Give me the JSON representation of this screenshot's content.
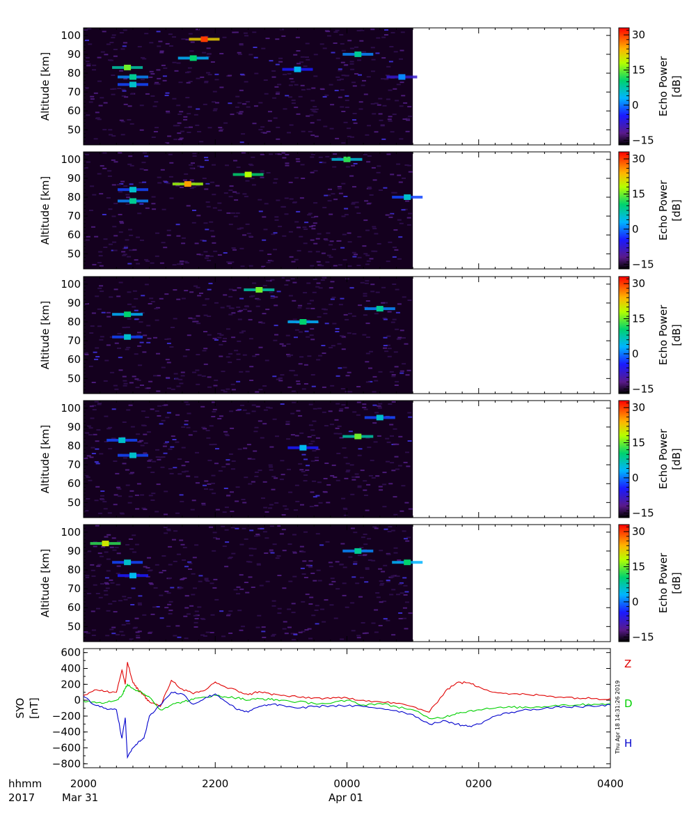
{
  "figure": {
    "panel_ylabel": "Altitude [km]",
    "colorbar_label_line1": "Echo Power",
    "colorbar_label_line2": "[dB]",
    "colorbar_ticks": [
      "30",
      "15",
      "0",
      "−15"
    ],
    "mag_ylabel_line1": "SYO",
    "mag_ylabel_line2": "[nT]",
    "x_row_label_1": "hhmm",
    "x_row_label_2": "2017",
    "date_labels": [
      "Mar 31",
      "Apr 01"
    ],
    "timestamp": "Thu Apr 18 14:31:26 2019",
    "colors": {
      "Z": "#e00000",
      "D": "#00d000",
      "H": "#0000cc"
    }
  },
  "chart_data": [
    {
      "type": "heatmap",
      "panel": 1,
      "ylabel": "Altitude [km]",
      "ylim": [
        42,
        104
      ],
      "yticks": [
        "50",
        "60",
        "70",
        "80",
        "90",
        "100"
      ],
      "xticks": [
        "2000",
        "2200",
        "0000",
        "0200",
        "0400"
      ],
      "data_until": "0100",
      "colorbar": {
        "label": "Echo Power [dB]",
        "range": [
          -17,
          33
        ],
        "ticks": [
          "30",
          "15",
          "0",
          "−15"
        ]
      },
      "echoes": [
        {
          "time": "2040",
          "alt": 83,
          "power": 15
        },
        {
          "time": "2045",
          "alt": 78,
          "power": 8
        },
        {
          "time": "2045",
          "alt": 74,
          "power": 5
        },
        {
          "time": "2150",
          "alt": 98,
          "power": 30
        },
        {
          "time": "2140",
          "alt": 88,
          "power": 10
        },
        {
          "time": "2315",
          "alt": 82,
          "power": 3
        },
        {
          "time": "0010",
          "alt": 90,
          "power": 8
        },
        {
          "time": "0050",
          "alt": 78,
          "power": 0
        }
      ]
    },
    {
      "type": "heatmap",
      "panel": 2,
      "ylabel": "Altitude [km]",
      "ylim": [
        42,
        104
      ],
      "yticks": [
        "50",
        "60",
        "70",
        "80",
        "90",
        "100"
      ],
      "xticks": [
        "2000",
        "2200",
        "0000",
        "0200",
        "0400"
      ],
      "data_until": "0100",
      "colorbar": {
        "label": "Echo Power [dB]",
        "range": [
          -17,
          33
        ],
        "ticks": [
          "30",
          "15",
          "0",
          "−15"
        ]
      },
      "echoes": [
        {
          "time": "2045",
          "alt": 84,
          "power": 5
        },
        {
          "time": "2045",
          "alt": 78,
          "power": 8
        },
        {
          "time": "2135",
          "alt": 87,
          "power": 25
        },
        {
          "time": "2230",
          "alt": 92,
          "power": 18
        },
        {
          "time": "0000",
          "alt": 100,
          "power": 12
        },
        {
          "time": "0055",
          "alt": 80,
          "power": 5
        }
      ]
    },
    {
      "type": "heatmap",
      "panel": 3,
      "ylabel": "Altitude [km]",
      "ylim": [
        42,
        104
      ],
      "yticks": [
        "50",
        "60",
        "70",
        "80",
        "90",
        "100"
      ],
      "xticks": [
        "2000",
        "2200",
        "0000",
        "0200",
        "0400"
      ],
      "data_until": "0100",
      "colorbar": {
        "label": "Echo Power [dB]",
        "range": [
          -17,
          33
        ],
        "ticks": [
          "30",
          "15",
          "0",
          "−15"
        ]
      },
      "echoes": [
        {
          "time": "2040",
          "alt": 84,
          "power": 10
        },
        {
          "time": "2040",
          "alt": 72,
          "power": 5
        },
        {
          "time": "2240",
          "alt": 97,
          "power": 15
        },
        {
          "time": "2320",
          "alt": 80,
          "power": 10
        },
        {
          "time": "0030",
          "alt": 87,
          "power": 8
        }
      ]
    },
    {
      "type": "heatmap",
      "panel": 4,
      "ylabel": "Altitude [km]",
      "ylim": [
        42,
        104
      ],
      "yticks": [
        "50",
        "60",
        "70",
        "80",
        "90",
        "100"
      ],
      "xticks": [
        "2000",
        "2200",
        "0000",
        "0200",
        "0400"
      ],
      "data_until": "0100",
      "colorbar": {
        "label": "Echo Power [dB]",
        "range": [
          -17,
          33
        ],
        "ticks": [
          "30",
          "15",
          "0",
          "−15"
        ]
      },
      "echoes": [
        {
          "time": "2035",
          "alt": 83,
          "power": 5
        },
        {
          "time": "2045",
          "alt": 75,
          "power": 5
        },
        {
          "time": "2320",
          "alt": 79,
          "power": 3
        },
        {
          "time": "0010",
          "alt": 85,
          "power": 15
        },
        {
          "time": "0030",
          "alt": 95,
          "power": 5
        }
      ]
    },
    {
      "type": "heatmap",
      "panel": 5,
      "ylabel": "Altitude [km]",
      "ylim": [
        42,
        104
      ],
      "yticks": [
        "50",
        "60",
        "70",
        "80",
        "90",
        "100"
      ],
      "xticks": [
        "2000",
        "2200",
        "0000",
        "0200",
        "0400"
      ],
      "data_until": "0100",
      "colorbar": {
        "label": "Echo Power [dB]",
        "range": [
          -17,
          33
        ],
        "ticks": [
          "30",
          "15",
          "0",
          "−15"
        ]
      },
      "echoes": [
        {
          "time": "2040",
          "alt": 84,
          "power": 5
        },
        {
          "time": "2045",
          "alt": 77,
          "power": 3
        },
        {
          "time": "2020",
          "alt": 94,
          "power": 20
        },
        {
          "time": "0010",
          "alt": 90,
          "power": 8
        },
        {
          "time": "0055",
          "alt": 84,
          "power": 10
        }
      ]
    },
    {
      "type": "line",
      "panel": 6,
      "ylabel": "SYO [nT]",
      "ylim": [
        -850,
        650
      ],
      "yticks": [
        "600",
        "400",
        "200",
        "0",
        "−200",
        "−400",
        "−600",
        "−800"
      ],
      "xticks": [
        "2000",
        "2200",
        "0000",
        "0200",
        "0400"
      ],
      "x_dates": [
        "Mar 31",
        "Apr 01"
      ],
      "series": [
        {
          "name": "Z",
          "color": "#e00000",
          "x": [
            "2000",
            "2010",
            "2020",
            "2030",
            "2035",
            "2038",
            "2040",
            "2045",
            "2050",
            "2055",
            "2100",
            "2110",
            "2120",
            "2130",
            "2140",
            "2150",
            "2200",
            "2210",
            "2220",
            "2230",
            "2240",
            "2250",
            "2300",
            "2315",
            "2330",
            "2345",
            "0000",
            "0015",
            "0030",
            "0045",
            "0100",
            "0115",
            "0130",
            "0140",
            "0150",
            "0200",
            "0215",
            "0230",
            "0245",
            "0300",
            "0315",
            "0330",
            "0345",
            "0400"
          ],
          "y": [
            60,
            130,
            110,
            100,
            380,
            200,
            480,
            220,
            130,
            60,
            -20,
            -80,
            250,
            140,
            80,
            120,
            230,
            160,
            120,
            70,
            110,
            80,
            60,
            40,
            30,
            20,
            30,
            0,
            -20,
            -40,
            -80,
            -150,
            120,
            220,
            220,
            170,
            100,
            80,
            70,
            60,
            40,
            30,
            20,
            20
          ]
        },
        {
          "name": "D",
          "color": "#00d000",
          "x": [
            "2000",
            "2010",
            "2020",
            "2030",
            "2035",
            "2038",
            "2040",
            "2045",
            "2050",
            "2055",
            "2100",
            "2110",
            "2120",
            "2130",
            "2140",
            "2150",
            "2200",
            "2210",
            "2220",
            "2230",
            "2240",
            "2250",
            "2300",
            "2315",
            "2330",
            "2345",
            "0000",
            "0015",
            "0030",
            "0045",
            "0100",
            "0115",
            "0130",
            "0140",
            "0150",
            "0200",
            "0215",
            "0230",
            "0245",
            "0300",
            "0315",
            "0330",
            "0345",
            "0400"
          ],
          "y": [
            -10,
            -20,
            -30,
            0,
            60,
            150,
            200,
            150,
            110,
            80,
            40,
            -120,
            -60,
            -20,
            10,
            40,
            60,
            40,
            30,
            0,
            20,
            10,
            0,
            -20,
            -40,
            -40,
            0,
            -60,
            -40,
            -80,
            -120,
            -230,
            -210,
            -160,
            -140,
            -120,
            -100,
            -90,
            -90,
            -80,
            -60,
            -60,
            -50,
            -40
          ]
        },
        {
          "name": "H",
          "color": "#0000cc",
          "x": [
            "2000",
            "2010",
            "2020",
            "2030",
            "2035",
            "2038",
            "2040",
            "2045",
            "2050",
            "2055",
            "2100",
            "2110",
            "2120",
            "2130",
            "2140",
            "2150",
            "2200",
            "2210",
            "2220",
            "2230",
            "2240",
            "2250",
            "2300",
            "2315",
            "2330",
            "2345",
            "0000",
            "0015",
            "0030",
            "0045",
            "0100",
            "0115",
            "0130",
            "0140",
            "0150",
            "0200",
            "0215",
            "0230",
            "0245",
            "0300",
            "0315",
            "0330",
            "0345",
            "0400"
          ],
          "y": [
            50,
            -60,
            -100,
            -120,
            -480,
            -220,
            -720,
            -600,
            -520,
            -480,
            -200,
            -60,
            100,
            80,
            -50,
            20,
            80,
            -20,
            -120,
            -150,
            -80,
            -60,
            -60,
            -100,
            -80,
            -70,
            -70,
            -80,
            -100,
            -130,
            -180,
            -300,
            -260,
            -300,
            -330,
            -300,
            -200,
            -150,
            -120,
            -100,
            -90,
            -80,
            -80,
            -60
          ]
        }
      ],
      "legend": [
        "Z",
        "D",
        "H"
      ]
    }
  ]
}
